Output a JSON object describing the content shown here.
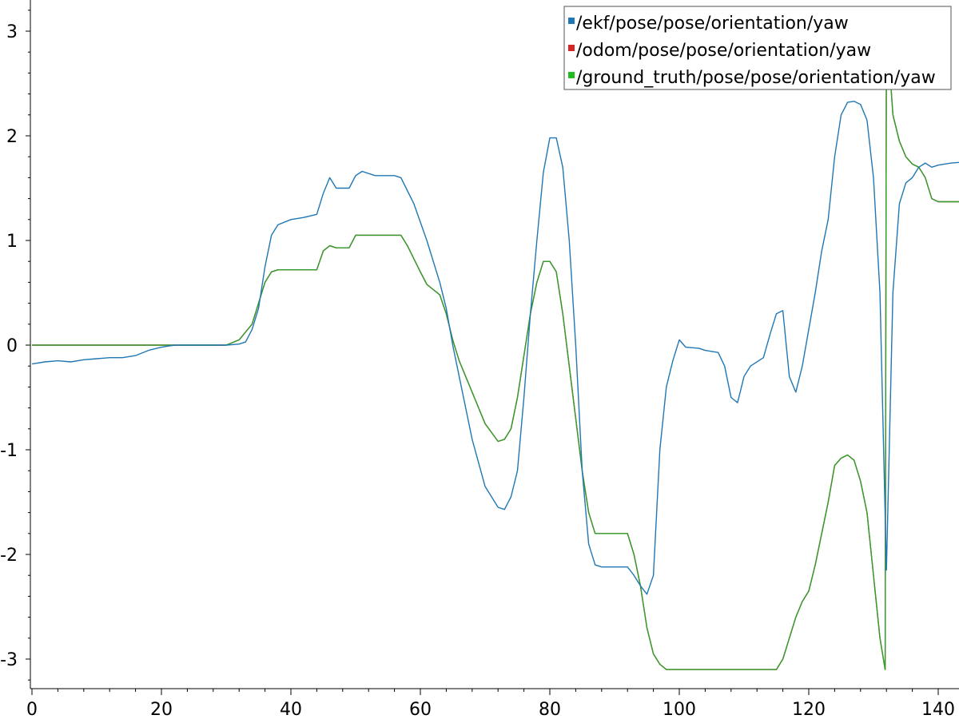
{
  "chart_data": {
    "type": "line",
    "title": "",
    "xlabel": "",
    "ylabel": "",
    "xlim": [
      0,
      148
    ],
    "ylim": [
      -3.3,
      3.3
    ],
    "grid": false,
    "legend_position": "top-right",
    "x_ticks": [
      "0",
      "20",
      "40",
      "60",
      "80",
      "100",
      "120",
      "140"
    ],
    "y_ticks": [
      "3",
      "2",
      "1",
      "0",
      "-1",
      "-2",
      "-3"
    ],
    "series": [
      {
        "name": "/ekf/pose/pose/orientation/yaw",
        "color": "#1f77b4",
        "points": [
          [
            0,
            -0.18
          ],
          [
            2,
            -0.16
          ],
          [
            4,
            -0.15
          ],
          [
            6,
            -0.16
          ],
          [
            8,
            -0.14
          ],
          [
            10,
            -0.13
          ],
          [
            12,
            -0.12
          ],
          [
            14,
            -0.12
          ],
          [
            16,
            -0.1
          ],
          [
            18,
            -0.05
          ],
          [
            20,
            -0.02
          ],
          [
            22,
            0
          ],
          [
            24,
            0
          ],
          [
            26,
            0
          ],
          [
            28,
            0
          ],
          [
            30,
            0
          ],
          [
            32,
            0.01
          ],
          [
            33,
            0.03
          ],
          [
            34,
            0.15
          ],
          [
            35,
            0.35
          ],
          [
            36,
            0.75
          ],
          [
            37,
            1.05
          ],
          [
            38,
            1.15
          ],
          [
            40,
            1.2
          ],
          [
            42,
            1.22
          ],
          [
            44,
            1.25
          ],
          [
            45,
            1.45
          ],
          [
            46,
            1.6
          ],
          [
            47,
            1.5
          ],
          [
            49,
            1.5
          ],
          [
            50,
            1.62
          ],
          [
            51,
            1.66
          ],
          [
            53,
            1.62
          ],
          [
            56,
            1.62
          ],
          [
            57,
            1.6
          ],
          [
            59,
            1.35
          ],
          [
            61,
            1.0
          ],
          [
            63,
            0.6
          ],
          [
            64,
            0.35
          ],
          [
            65,
            0.0
          ],
          [
            66,
            -0.3
          ],
          [
            68,
            -0.9
          ],
          [
            70,
            -1.35
          ],
          [
            72,
            -1.55
          ],
          [
            73,
            -1.57
          ],
          [
            74,
            -1.45
          ],
          [
            75,
            -1.2
          ],
          [
            76,
            -0.5
          ],
          [
            77,
            0.3
          ],
          [
            78,
            1.0
          ],
          [
            79,
            1.65
          ],
          [
            80,
            1.98
          ],
          [
            81,
            1.98
          ],
          [
            82,
            1.7
          ],
          [
            83,
            1.0
          ],
          [
            84,
            0.0
          ],
          [
            85,
            -1.2
          ],
          [
            86,
            -1.9
          ],
          [
            87,
            -2.1
          ],
          [
            88,
            -2.12
          ],
          [
            90,
            -2.12
          ],
          [
            92,
            -2.12
          ],
          [
            93,
            -2.2
          ],
          [
            94,
            -2.3
          ],
          [
            95,
            -2.38
          ],
          [
            96,
            -2.2
          ],
          [
            97,
            -1.0
          ],
          [
            98,
            -0.4
          ],
          [
            99,
            -0.15
          ],
          [
            100,
            0.05
          ],
          [
            101,
            -0.02
          ],
          [
            103,
            -0.03
          ],
          [
            104,
            -0.05
          ],
          [
            106,
            -0.07
          ],
          [
            107,
            -0.2
          ],
          [
            108,
            -0.5
          ],
          [
            109,
            -0.55
          ],
          [
            110,
            -0.3
          ],
          [
            111,
            -0.2
          ],
          [
            113,
            -0.12
          ],
          [
            114,
            0.1
          ],
          [
            115,
            0.3
          ],
          [
            116,
            0.33
          ],
          [
            117,
            -0.3
          ],
          [
            118,
            -0.45
          ],
          [
            119,
            -0.2
          ],
          [
            121,
            0.5
          ],
          [
            122,
            0.9
          ],
          [
            123,
            1.2
          ],
          [
            124,
            1.8
          ],
          [
            125,
            2.2
          ],
          [
            126,
            2.32
          ],
          [
            127,
            2.33
          ],
          [
            128,
            2.3
          ],
          [
            129,
            2.15
          ],
          [
            130,
            1.6
          ],
          [
            131,
            0.5
          ],
          [
            132,
            -2.15
          ],
          [
            133,
            0.5
          ],
          [
            134,
            1.35
          ],
          [
            135,
            1.55
          ],
          [
            136,
            1.6
          ],
          [
            137,
            1.7
          ],
          [
            138,
            1.74
          ],
          [
            139,
            1.7
          ],
          [
            140,
            1.72
          ],
          [
            142,
            1.74
          ],
          [
            144,
            1.75
          ],
          [
            146,
            1.77
          ],
          [
            148,
            1.78
          ]
        ]
      },
      {
        "name": "/odom/pose/pose/orientation/yaw",
        "color": "#d62728",
        "points": [
          [
            0,
            0
          ],
          [
            30,
            0
          ],
          [
            32,
            0.05
          ],
          [
            34,
            0.2
          ],
          [
            35,
            0.4
          ],
          [
            36,
            0.6
          ],
          [
            37,
            0.7
          ],
          [
            38,
            0.72
          ],
          [
            44,
            0.72
          ],
          [
            45,
            0.9
          ],
          [
            46,
            0.95
          ],
          [
            47,
            0.93
          ],
          [
            49,
            0.93
          ],
          [
            50,
            1.05
          ],
          [
            57,
            1.05
          ],
          [
            58,
            0.95
          ],
          [
            60,
            0.7
          ],
          [
            61,
            0.58
          ],
          [
            63,
            0.48
          ],
          [
            64,
            0.3
          ],
          [
            65,
            0.05
          ],
          [
            66,
            -0.15
          ],
          [
            68,
            -0.45
          ],
          [
            70,
            -0.75
          ],
          [
            72,
            -0.92
          ],
          [
            73,
            -0.9
          ],
          [
            74,
            -0.8
          ],
          [
            75,
            -0.5
          ],
          [
            76,
            -0.1
          ],
          [
            77,
            0.3
          ],
          [
            78,
            0.6
          ],
          [
            79,
            0.8
          ],
          [
            80,
            0.8
          ],
          [
            81,
            0.7
          ],
          [
            82,
            0.3
          ],
          [
            83,
            -0.2
          ],
          [
            84,
            -0.7
          ],
          [
            85,
            -1.2
          ],
          [
            86,
            -1.6
          ],
          [
            87,
            -1.8
          ],
          [
            92,
            -1.8
          ],
          [
            93,
            -2.0
          ],
          [
            94,
            -2.3
          ],
          [
            95,
            -2.7
          ],
          [
            96,
            -2.95
          ],
          [
            97,
            -3.05
          ],
          [
            98,
            -3.1
          ],
          [
            115,
            -3.1
          ],
          [
            116,
            -3.0
          ],
          [
            117,
            -2.8
          ],
          [
            118,
            -2.6
          ],
          [
            119,
            -2.45
          ],
          [
            120,
            -2.35
          ],
          [
            121,
            -2.1
          ],
          [
            122,
            -1.8
          ],
          [
            123,
            -1.5
          ],
          [
            124,
            -1.15
          ],
          [
            125,
            -1.08
          ],
          [
            126,
            -1.05
          ],
          [
            127,
            -1.1
          ],
          [
            128,
            -1.3
          ],
          [
            129,
            -1.6
          ],
          [
            130,
            -2.2
          ],
          [
            131,
            -2.8
          ],
          [
            131.8,
            -3.1
          ],
          [
            132,
            3.1
          ],
          [
            133,
            2.2
          ],
          [
            134,
            1.95
          ],
          [
            135,
            1.8
          ],
          [
            136,
            1.73
          ],
          [
            137,
            1.7
          ],
          [
            138,
            1.6
          ],
          [
            139,
            1.4
          ],
          [
            140,
            1.37
          ],
          [
            148,
            1.37
          ]
        ]
      },
      {
        "name": "/ground_truth/pose/pose/orientation/yaw",
        "color": "#2ca02c",
        "points": [
          [
            0,
            0
          ],
          [
            30,
            0
          ],
          [
            32,
            0.05
          ],
          [
            34,
            0.2
          ],
          [
            35,
            0.4
          ],
          [
            36,
            0.6
          ],
          [
            37,
            0.7
          ],
          [
            38,
            0.72
          ],
          [
            44,
            0.72
          ],
          [
            45,
            0.9
          ],
          [
            46,
            0.95
          ],
          [
            47,
            0.93
          ],
          [
            49,
            0.93
          ],
          [
            50,
            1.05
          ],
          [
            57,
            1.05
          ],
          [
            58,
            0.95
          ],
          [
            60,
            0.7
          ],
          [
            61,
            0.58
          ],
          [
            63,
            0.48
          ],
          [
            64,
            0.3
          ],
          [
            65,
            0.05
          ],
          [
            66,
            -0.15
          ],
          [
            68,
            -0.45
          ],
          [
            70,
            -0.75
          ],
          [
            72,
            -0.92
          ],
          [
            73,
            -0.9
          ],
          [
            74,
            -0.8
          ],
          [
            75,
            -0.5
          ],
          [
            76,
            -0.1
          ],
          [
            77,
            0.3
          ],
          [
            78,
            0.6
          ],
          [
            79,
            0.8
          ],
          [
            80,
            0.8
          ],
          [
            81,
            0.7
          ],
          [
            82,
            0.3
          ],
          [
            83,
            -0.2
          ],
          [
            84,
            -0.7
          ],
          [
            85,
            -1.2
          ],
          [
            86,
            -1.6
          ],
          [
            87,
            -1.8
          ],
          [
            92,
            -1.8
          ],
          [
            93,
            -2.0
          ],
          [
            94,
            -2.3
          ],
          [
            95,
            -2.7
          ],
          [
            96,
            -2.95
          ],
          [
            97,
            -3.05
          ],
          [
            98,
            -3.1
          ],
          [
            115,
            -3.1
          ],
          [
            116,
            -3.0
          ],
          [
            117,
            -2.8
          ],
          [
            118,
            -2.6
          ],
          [
            119,
            -2.45
          ],
          [
            120,
            -2.35
          ],
          [
            121,
            -2.1
          ],
          [
            122,
            -1.8
          ],
          [
            123,
            -1.5
          ],
          [
            124,
            -1.15
          ],
          [
            125,
            -1.08
          ],
          [
            126,
            -1.05
          ],
          [
            127,
            -1.1
          ],
          [
            128,
            -1.3
          ],
          [
            129,
            -1.6
          ],
          [
            130,
            -2.2
          ],
          [
            131,
            -2.8
          ],
          [
            131.8,
            -3.1
          ],
          [
            132,
            3.1
          ],
          [
            133,
            2.2
          ],
          [
            134,
            1.95
          ],
          [
            135,
            1.8
          ],
          [
            136,
            1.73
          ],
          [
            137,
            1.7
          ],
          [
            138,
            1.6
          ],
          [
            139,
            1.4
          ],
          [
            140,
            1.37
          ],
          [
            148,
            1.37
          ]
        ]
      }
    ]
  }
}
